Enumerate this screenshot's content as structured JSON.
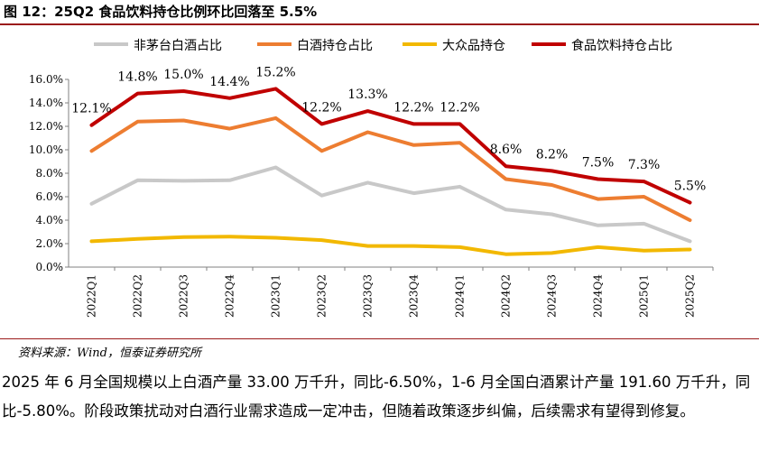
{
  "title": "图 12：25Q2 食品饮料持仓比例环比回落至 5.5%",
  "source": "资料来源：Wind，恒泰证券研究所",
  "body_text": "2025 年 6 月全国规模以上白酒产量 33.00 万千升，同比-6.50%，1-6 月全国白酒累计产量 191.60 万千升，同比-5.80%。阶段政策扰动对白酒行业需求造成一定冲击，但随着政策逐步纠偏，后续需求有望得到修复。",
  "chart_data": {
    "type": "line",
    "title": "",
    "xlabel": "",
    "ylabel": "",
    "ylim": [
      0,
      16
    ],
    "yticks": [
      "0.0%",
      "2.0%",
      "4.0%",
      "6.0%",
      "8.0%",
      "10.0%",
      "12.0%",
      "14.0%",
      "16.0%"
    ],
    "grid": false,
    "legend_position": "top",
    "categories": [
      "2022Q1",
      "2022Q2",
      "2022Q3",
      "2022Q4",
      "2023Q1",
      "2023Q2",
      "2023Q3",
      "2023Q4",
      "2024Q1",
      "2024Q2",
      "2024Q3",
      "2024Q4",
      "2025Q1",
      "2025Q2"
    ],
    "series": [
      {
        "name": "非茅台白酒占比",
        "color": "#c8c8c8",
        "values": [
          5.4,
          7.4,
          7.35,
          7.4,
          8.5,
          6.1,
          7.2,
          6.3,
          6.85,
          4.9,
          4.5,
          3.55,
          3.7,
          2.2
        ]
      },
      {
        "name": "白酒持仓占比",
        "color": "#ed7d31",
        "values": [
          9.9,
          12.4,
          12.5,
          11.8,
          12.7,
          9.9,
          11.5,
          10.4,
          10.6,
          7.5,
          7.0,
          5.8,
          6.0,
          4.0
        ]
      },
      {
        "name": "大众品持仓",
        "color": "#f2b800",
        "values": [
          2.2,
          2.4,
          2.55,
          2.6,
          2.5,
          2.3,
          1.8,
          1.8,
          1.7,
          1.1,
          1.2,
          1.7,
          1.4,
          1.5
        ]
      },
      {
        "name": "食品饮料持仓占比",
        "color": "#c00000",
        "values": [
          12.1,
          14.8,
          15.0,
          14.4,
          15.2,
          12.2,
          13.3,
          12.2,
          12.2,
          8.6,
          8.2,
          7.5,
          7.3,
          5.5
        ],
        "data_labels": [
          "12.1%",
          "14.8%",
          "15.0%",
          "14.4%",
          "15.2%",
          "12.2%",
          "13.3%",
          "12.2%",
          "12.2%",
          "8.6%",
          "8.2%",
          "7.5%",
          "7.3%",
          "5.5%"
        ]
      }
    ]
  }
}
